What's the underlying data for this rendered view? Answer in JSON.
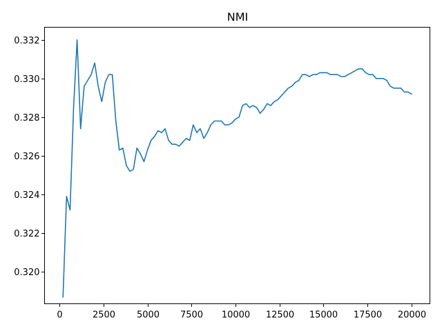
{
  "chart_data": {
    "type": "line",
    "title": "NMI",
    "xlabel": "",
    "ylabel": "",
    "xlim": [
      -850,
      21050
    ],
    "ylim": [
      0.31835,
      0.33265
    ],
    "xticks": [
      0,
      2500,
      5000,
      7500,
      10000,
      12500,
      15000,
      17500,
      20000
    ],
    "xtick_labels": [
      "0",
      "2500",
      "5000",
      "7500",
      "10000",
      "12500",
      "15000",
      "17500",
      "20000"
    ],
    "yticks": [
      0.32,
      0.322,
      0.324,
      0.326,
      0.328,
      0.33,
      0.332
    ],
    "ytick_labels": [
      "0.320",
      "0.322",
      "0.324",
      "0.326",
      "0.328",
      "0.330",
      "0.332"
    ],
    "grid": false,
    "legend": "none",
    "colors": {
      "line": "#1f77b4"
    },
    "series": [
      {
        "x": [
          200,
          400,
          600,
          800,
          1000,
          1200,
          1400,
          1600,
          1800,
          2000,
          2200,
          2400,
          2600,
          2800,
          3000,
          3200,
          3400,
          3600,
          3800,
          4000,
          4200,
          4400,
          4600,
          4800,
          5000,
          5200,
          5400,
          5600,
          5800,
          6000,
          6200,
          6400,
          6600,
          6800,
          7000,
          7200,
          7400,
          7600,
          7800,
          8000,
          8200,
          8400,
          8600,
          8800,
          9000,
          9200,
          9400,
          9600,
          9800,
          10000,
          10200,
          10400,
          10600,
          10800,
          11000,
          11200,
          11400,
          11600,
          11800,
          12000,
          12200,
          12400,
          12600,
          12800,
          13000,
          13200,
          13400,
          13600,
          13800,
          14000,
          14200,
          14400,
          14600,
          14800,
          15000,
          15200,
          15400,
          15600,
          15800,
          16000,
          16200,
          16400,
          16600,
          16800,
          17000,
          17200,
          17400,
          17600,
          17800,
          18000,
          18200,
          18400,
          18600,
          18800,
          19000,
          19200,
          19400,
          19600,
          19800,
          20000
        ],
        "values": [
          0.3187,
          0.3239,
          0.3232,
          0.3285,
          0.332,
          0.3274,
          0.3296,
          0.3299,
          0.3302,
          0.3308,
          0.3296,
          0.3288,
          0.3298,
          0.3302,
          0.3302,
          0.3278,
          0.3263,
          0.3264,
          0.3255,
          0.3252,
          0.3253,
          0.3264,
          0.3261,
          0.3257,
          0.3263,
          0.3268,
          0.327,
          0.3273,
          0.3272,
          0.3274,
          0.3268,
          0.3266,
          0.3266,
          0.3265,
          0.3267,
          0.3269,
          0.3268,
          0.3276,
          0.3272,
          0.3274,
          0.3269,
          0.3272,
          0.3276,
          0.3278,
          0.3278,
          0.3278,
          0.3276,
          0.3276,
          0.3277,
          0.3279,
          0.328,
          0.3286,
          0.3287,
          0.3285,
          0.3286,
          0.3285,
          0.3282,
          0.3284,
          0.3287,
          0.3286,
          0.3288,
          0.3289,
          0.3291,
          0.3293,
          0.3295,
          0.3296,
          0.3298,
          0.3299,
          0.3302,
          0.3302,
          0.3301,
          0.3302,
          0.3302,
          0.3303,
          0.3303,
          0.3303,
          0.3302,
          0.3302,
          0.3302,
          0.3301,
          0.3301,
          0.3302,
          0.3303,
          0.3304,
          0.3305,
          0.3305,
          0.3303,
          0.3302,
          0.3302,
          0.33,
          0.33,
          0.33,
          0.3299,
          0.3296,
          0.3295,
          0.3295,
          0.3295,
          0.3293,
          0.3293,
          0.3292
        ]
      }
    ]
  }
}
